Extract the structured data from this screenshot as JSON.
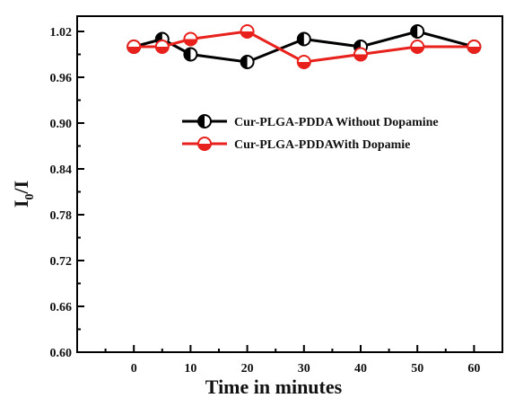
{
  "chart_data": {
    "type": "line",
    "xlabel": "Time in minutes",
    "ylabel_main": "I",
    "ylabel_sub": "0",
    "ylabel_tail": "/I",
    "xlim": [
      -10,
      65
    ],
    "ylim": [
      0.6,
      1.04
    ],
    "xticks": [
      0,
      10,
      20,
      30,
      40,
      50,
      60
    ],
    "yticks": [
      0.6,
      0.66,
      0.72,
      0.78,
      0.84,
      0.9,
      0.96,
      1.02
    ],
    "ytick_labels": [
      "0.60",
      "0.66",
      "0.72",
      "0.78",
      "0.84",
      "0.90",
      "0.96",
      "1.02"
    ],
    "x_minor_ticks": [
      -5,
      5,
      15,
      25,
      35,
      45,
      55,
      65
    ],
    "y_minor_ticks": [
      0.63,
      0.69,
      0.75,
      0.81,
      0.87,
      0.93,
      0.99
    ],
    "grid": false,
    "legend_position": "upper-right",
    "series": [
      {
        "name": "Cur-PLGA-PDDA Without Dopamine",
        "color": "#000000",
        "marker": "half-filled-circle-left",
        "x": [
          0,
          5,
          10,
          20,
          30,
          40,
          50,
          60
        ],
        "y": [
          1.0,
          1.01,
          0.99,
          0.98,
          1.01,
          1.0,
          1.02,
          1.0
        ]
      },
      {
        "name": "Cur-PLGA-PDDAWith Dopamie",
        "color": "#e8211c",
        "marker": "half-filled-circle-bottom",
        "x": [
          0,
          5,
          10,
          20,
          30,
          40,
          50,
          60
        ],
        "y": [
          1.0,
          1.0,
          1.01,
          1.02,
          0.98,
          0.99,
          1.0,
          1.0
        ]
      }
    ]
  }
}
